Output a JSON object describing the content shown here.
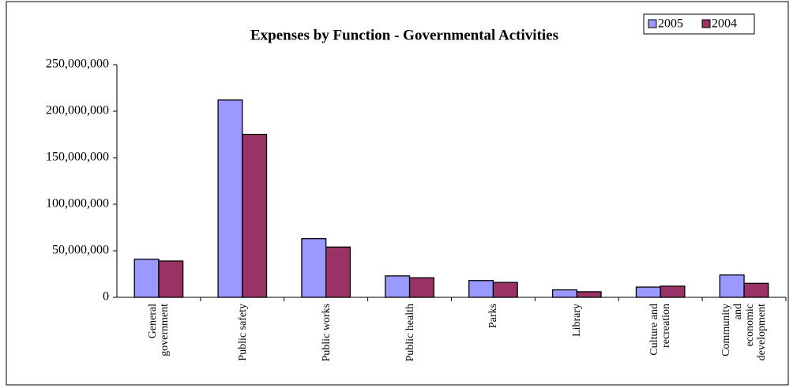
{
  "chart_data": {
    "type": "bar",
    "title": "Expenses by Function - Governmental Activities",
    "categories": [
      "General\ngovernment",
      "Public safety",
      "Public works",
      "Public health",
      "Parks",
      "Library",
      "Culture and\nrecreation",
      "Community\nand\neconomic\ndevelopment"
    ],
    "series": [
      {
        "name": "2005",
        "color": "#9999ff",
        "values": [
          41000000,
          212000000,
          63000000,
          23000000,
          18000000,
          8000000,
          11000000,
          24000000
        ]
      },
      {
        "name": "2004",
        "color": "#993366",
        "values": [
          39000000,
          175000000,
          54000000,
          21000000,
          16000000,
          6000000,
          12000000,
          15000000
        ]
      }
    ],
    "ylim": [
      0,
      250000000
    ],
    "yticks": [
      0,
      {
        "value": 50000000,
        "label": "50,000,000"
      },
      {
        "value": 100000000,
        "label": "100,000,000"
      },
      {
        "value": 150000000,
        "label": "150,000,000"
      },
      {
        "value": 200000000,
        "label": "200,000,000"
      },
      {
        "value": 250000000,
        "label": "250,000,000"
      }
    ],
    "legend": "top-right"
  }
}
